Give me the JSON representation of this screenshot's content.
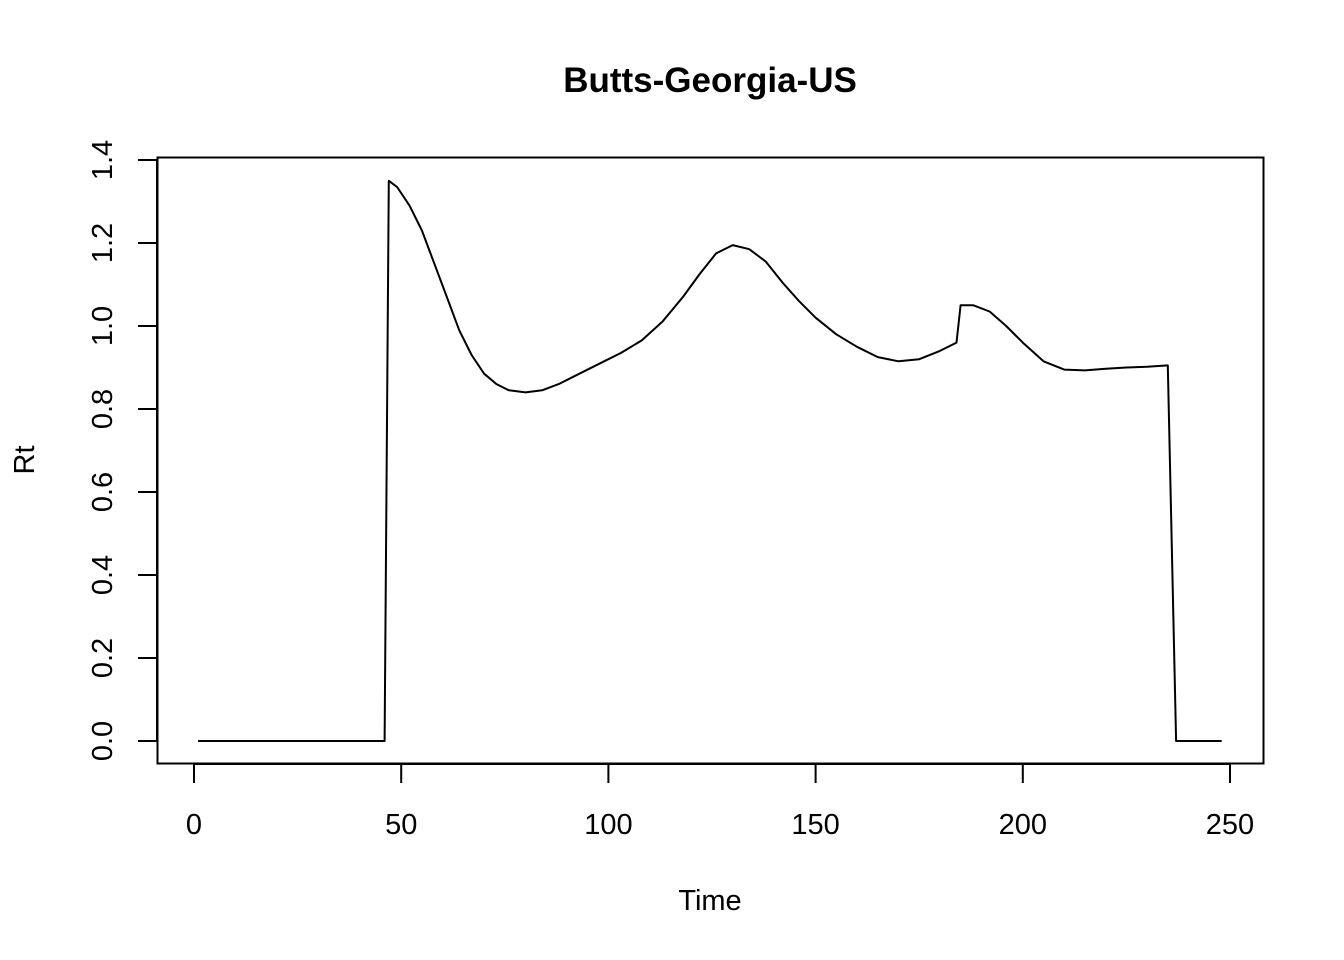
{
  "chart_data": {
    "type": "line",
    "title": "Butts-Georgia-US",
    "xlabel": "Time",
    "ylabel": "Rt",
    "xlim": [
      0,
      250
    ],
    "ylim": [
      0,
      1.4
    ],
    "x_ticks": [
      0,
      50,
      100,
      150,
      200,
      250
    ],
    "y_ticks": [
      0.0,
      0.2,
      0.4,
      0.6,
      0.8,
      1.0,
      1.2,
      1.4
    ],
    "x_tick_labels": [
      "0",
      "50",
      "100",
      "150",
      "200",
      "250"
    ],
    "y_tick_labels": [
      "0.0",
      "0.2",
      "0.4",
      "0.6",
      "0.8",
      "1.0",
      "1.2",
      "1.4"
    ],
    "grid": false,
    "legend": "none",
    "line_color": "#000000",
    "series": [
      {
        "points": [
          [
            1,
            0
          ],
          [
            46,
            0
          ],
          [
            47,
            1.35
          ],
          [
            49,
            1.335
          ],
          [
            52,
            1.29
          ],
          [
            55,
            1.23
          ],
          [
            58,
            1.15
          ],
          [
            61,
            1.07
          ],
          [
            64,
            0.99
          ],
          [
            67,
            0.93
          ],
          [
            70,
            0.885
          ],
          [
            73,
            0.86
          ],
          [
            76,
            0.845
          ],
          [
            80,
            0.84
          ],
          [
            84,
            0.845
          ],
          [
            88,
            0.86
          ],
          [
            93,
            0.885
          ],
          [
            98,
            0.91
          ],
          [
            103,
            0.935
          ],
          [
            108,
            0.965
          ],
          [
            113,
            1.01
          ],
          [
            118,
            1.07
          ],
          [
            122,
            1.125
          ],
          [
            126,
            1.175
          ],
          [
            130,
            1.195
          ],
          [
            134,
            1.185
          ],
          [
            138,
            1.155
          ],
          [
            142,
            1.105
          ],
          [
            146,
            1.06
          ],
          [
            150,
            1.02
          ],
          [
            155,
            0.98
          ],
          [
            160,
            0.95
          ],
          [
            165,
            0.925
          ],
          [
            170,
            0.915
          ],
          [
            175,
            0.92
          ],
          [
            180,
            0.94
          ],
          [
            184,
            0.96
          ],
          [
            185,
            1.05
          ],
          [
            188,
            1.05
          ],
          [
            192,
            1.035
          ],
          [
            196,
            1.0
          ],
          [
            200,
            0.96
          ],
          [
            205,
            0.915
          ],
          [
            210,
            0.895
          ],
          [
            215,
            0.893
          ],
          [
            220,
            0.897
          ],
          [
            225,
            0.9
          ],
          [
            230,
            0.902
          ],
          [
            235,
            0.905
          ],
          [
            237,
            0
          ],
          [
            248,
            0
          ]
        ]
      }
    ]
  }
}
